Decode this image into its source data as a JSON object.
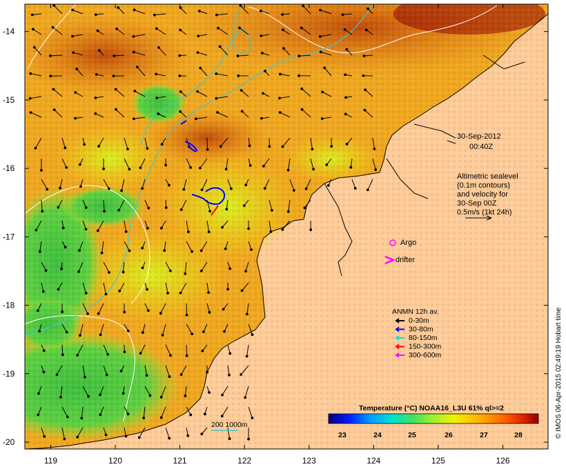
{
  "map": {
    "lon_range": [
      118.6,
      126.7
    ],
    "lat_range": [
      -20.1,
      -13.6
    ],
    "x_ticks": [
      119,
      120,
      121,
      122,
      123,
      124,
      125,
      126
    ],
    "y_ticks": [
      -14,
      -15,
      -16,
      -17,
      -18,
      -19,
      -20
    ],
    "x_tick_labels": [
      "119",
      "120",
      "121",
      "122",
      "123",
      "124",
      "125",
      "126"
    ],
    "y_tick_labels": [
      "-14",
      "-15",
      "-16",
      "-17",
      "-18",
      "-19",
      "-20"
    ]
  },
  "annotations": {
    "date": "30-Sep-2012",
    "time": "00:40Z",
    "altimetry_lines": [
      "Altimetric sealevel",
      "(0.1m contours)",
      "and velocity for",
      "30-Sep 00Z",
      "0.5m/s (1kt 24h)"
    ],
    "argo_label": "Argo",
    "drifter_label": "drifter",
    "scale_label": "200  1000m",
    "credit": "© IMOS 06-Apr-2015 02:49:19 Hobart time"
  },
  "anmn_legend": {
    "title": "ANMN 12h av.",
    "entries": [
      {
        "label": "0-30m",
        "color": "#000000"
      },
      {
        "label": "30-80m",
        "color": "#0000ff"
      },
      {
        "label": "80-150m",
        "color": "#00e5e5"
      },
      {
        "label": "150-300m",
        "color": "#ff0000"
      },
      {
        "label": "300-600m",
        "color": "#ff00ff"
      }
    ]
  },
  "colorbar": {
    "title": "Temperature (°C) NOAA16_L3U 61% ql>=2",
    "ticks": [
      "23",
      "24",
      "25",
      "26",
      "27",
      "28"
    ],
    "colors": [
      "#00007f",
      "#0020ff",
      "#00a0ff",
      "#00e0d0",
      "#40e060",
      "#a0f030",
      "#f0f000",
      "#ffb000",
      "#ff6000",
      "#e02000",
      "#900000"
    ]
  },
  "colors": {
    "land": "#ffcc99",
    "coast": "#000000",
    "contour_200m": "#40c8c8",
    "ssh_contour": "#ffffff"
  }
}
